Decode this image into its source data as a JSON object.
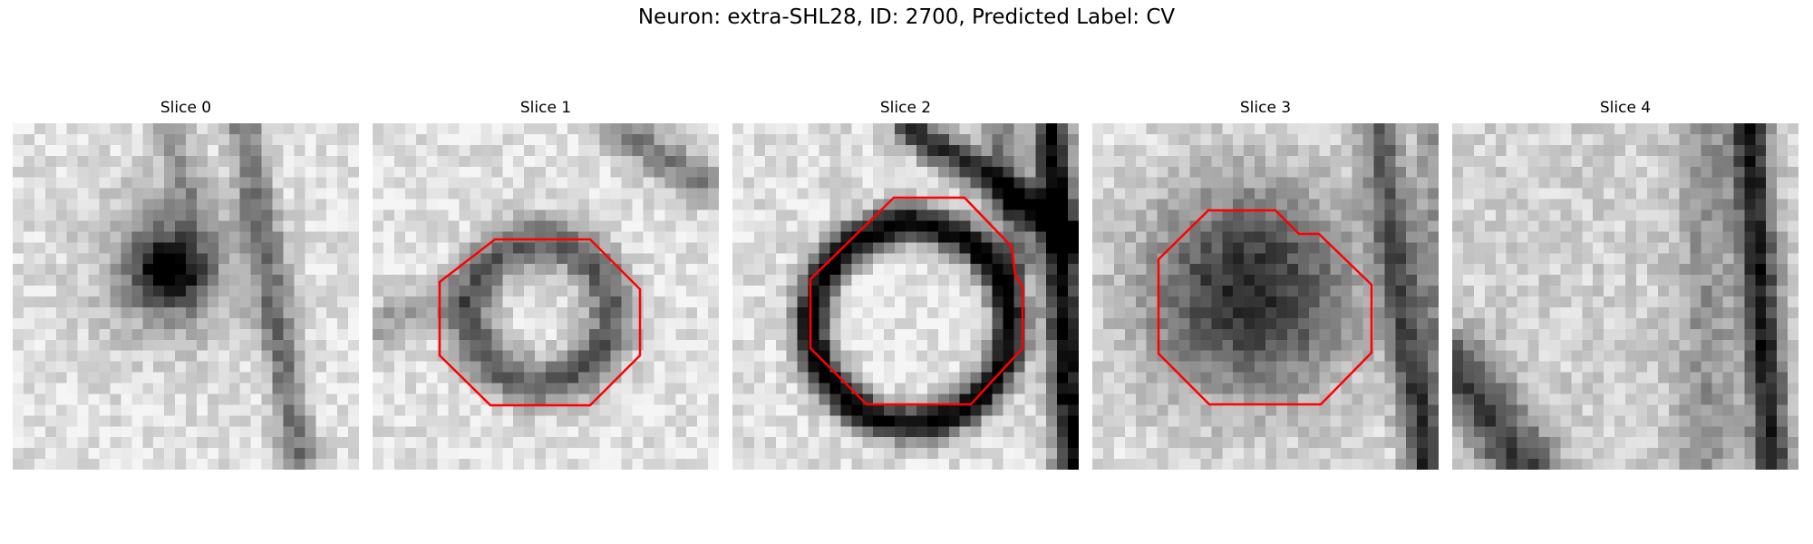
{
  "figure_title": "Neuron: extra-SHL28, ID: 2700, Predicted Label: CV",
  "panels": [
    {
      "label": "Slice 0",
      "has_contour": false
    },
    {
      "label": "Slice 1",
      "has_contour": true
    },
    {
      "label": "Slice 2",
      "has_contour": true
    },
    {
      "label": "Slice 3",
      "has_contour": true
    },
    {
      "label": "Slice 4",
      "has_contour": false
    }
  ],
  "colors": {
    "contour": "#ff0000"
  }
}
